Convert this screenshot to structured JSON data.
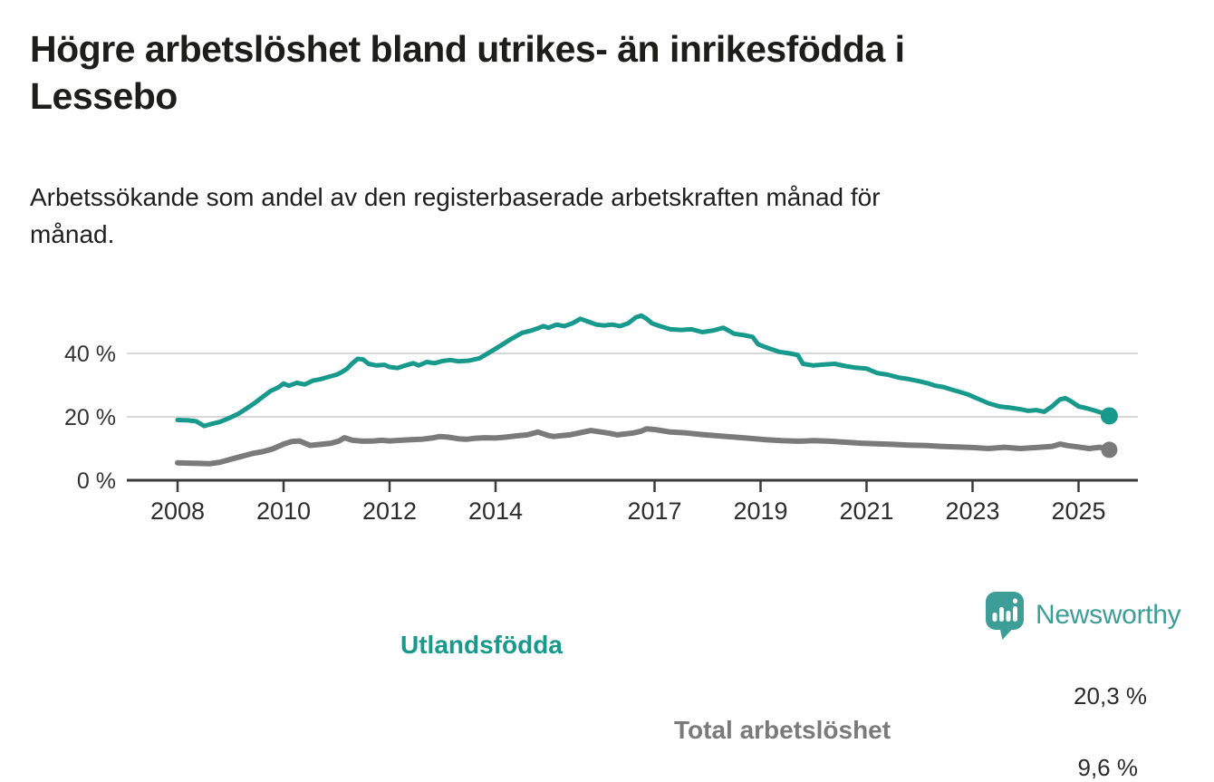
{
  "header": {
    "title_lines": [
      "Högre arbetslöshet bland utrikes- än inrikesfödda i",
      "Lessebo"
    ],
    "subtitle_lines": [
      "Arbetssökande som andel av den registerbaserade arbetskraften månad för",
      "månad."
    ]
  },
  "chart_data": {
    "type": "line",
    "title": "Högre arbetslöshet bland utrikes- än inrikesfödda i Lessebo",
    "subtitle": "Arbetssökande som andel av den registerbaserade arbetskraften månad för månad.",
    "xlabel": "",
    "ylabel": "",
    "y_unit": "%",
    "x_unit": "year (monthly observations)",
    "xlim": [
      2007.6,
      2026.1
    ],
    "ylim": [
      0,
      55
    ],
    "grid": "horizontal-only",
    "legend_position": "inline-labels-on-chart",
    "x_ticks": [
      {
        "year": 2008,
        "label": "2008"
      },
      {
        "year": 2010,
        "label": "2010"
      },
      {
        "year": 2012,
        "label": "2012"
      },
      {
        "year": 2014,
        "label": "2014"
      },
      {
        "year": 2017,
        "label": "2017"
      },
      {
        "year": 2019,
        "label": "2019"
      },
      {
        "year": 2021,
        "label": "2021"
      },
      {
        "year": 2023,
        "label": "2023"
      },
      {
        "year": 2025,
        "label": "2025"
      }
    ],
    "y_ticks": [
      {
        "value": 40,
        "label": "40 %"
      },
      {
        "value": 20,
        "label": "20 %"
      },
      {
        "value": 0,
        "label": "0 %"
      }
    ],
    "colors": {
      "grid": "#d8d8d8",
      "axis": "#3a3a3a",
      "tick_text": "#2d2d2d"
    },
    "series": [
      {
        "id": "utlandsfodda",
        "label": "Utlandsfödda",
        "color": "#17998c",
        "end_label": "20,3 %",
        "end_value": 20.3,
        "points": [
          [
            2008.0,
            19.0
          ],
          [
            2008.2,
            18.9
          ],
          [
            2008.35,
            18.6
          ],
          [
            2008.5,
            17.1
          ],
          [
            2008.65,
            17.8
          ],
          [
            2008.8,
            18.4
          ],
          [
            2009.0,
            19.8
          ],
          [
            2009.15,
            21.0
          ],
          [
            2009.3,
            22.6
          ],
          [
            2009.45,
            24.3
          ],
          [
            2009.6,
            26.2
          ],
          [
            2009.75,
            28.1
          ],
          [
            2009.9,
            29.3
          ],
          [
            2010.0,
            30.5
          ],
          [
            2010.1,
            29.8
          ],
          [
            2010.25,
            30.7
          ],
          [
            2010.4,
            30.2
          ],
          [
            2010.55,
            31.4
          ],
          [
            2010.7,
            31.9
          ],
          [
            2010.85,
            32.6
          ],
          [
            2011.0,
            33.3
          ],
          [
            2011.1,
            34.1
          ],
          [
            2011.2,
            35.2
          ],
          [
            2011.3,
            36.9
          ],
          [
            2011.4,
            38.3
          ],
          [
            2011.5,
            38.1
          ],
          [
            2011.6,
            36.7
          ],
          [
            2011.75,
            36.2
          ],
          [
            2011.9,
            36.4
          ],
          [
            2012.0,
            35.7
          ],
          [
            2012.15,
            35.4
          ],
          [
            2012.3,
            36.2
          ],
          [
            2012.45,
            36.9
          ],
          [
            2012.55,
            36.2
          ],
          [
            2012.7,
            37.3
          ],
          [
            2012.85,
            36.9
          ],
          [
            2013.0,
            37.6
          ],
          [
            2013.15,
            37.9
          ],
          [
            2013.3,
            37.5
          ],
          [
            2013.5,
            37.7
          ],
          [
            2013.7,
            38.5
          ],
          [
            2013.9,
            40.5
          ],
          [
            2014.1,
            42.5
          ],
          [
            2014.3,
            44.6
          ],
          [
            2014.5,
            46.5
          ],
          [
            2014.65,
            47.1
          ],
          [
            2014.8,
            47.9
          ],
          [
            2014.9,
            48.6
          ],
          [
            2015.0,
            48.1
          ],
          [
            2015.15,
            49.1
          ],
          [
            2015.3,
            48.6
          ],
          [
            2015.45,
            49.5
          ],
          [
            2015.6,
            50.9
          ],
          [
            2015.75,
            50.0
          ],
          [
            2015.9,
            49.1
          ],
          [
            2016.05,
            48.8
          ],
          [
            2016.2,
            49.1
          ],
          [
            2016.35,
            48.6
          ],
          [
            2016.5,
            49.5
          ],
          [
            2016.65,
            51.4
          ],
          [
            2016.75,
            51.9
          ],
          [
            2016.85,
            50.9
          ],
          [
            2016.95,
            49.5
          ],
          [
            2017.1,
            48.6
          ],
          [
            2017.3,
            47.6
          ],
          [
            2017.5,
            47.4
          ],
          [
            2017.7,
            47.6
          ],
          [
            2017.9,
            46.7
          ],
          [
            2018.1,
            47.2
          ],
          [
            2018.3,
            48.1
          ],
          [
            2018.5,
            46.2
          ],
          [
            2018.7,
            45.7
          ],
          [
            2018.85,
            45.2
          ],
          [
            2018.95,
            42.9
          ],
          [
            2019.1,
            41.9
          ],
          [
            2019.35,
            40.5
          ],
          [
            2019.55,
            40.0
          ],
          [
            2019.7,
            39.5
          ],
          [
            2019.8,
            36.7
          ],
          [
            2020.0,
            36.2
          ],
          [
            2020.2,
            36.5
          ],
          [
            2020.4,
            36.7
          ],
          [
            2020.6,
            36.0
          ],
          [
            2020.8,
            35.5
          ],
          [
            2021.0,
            35.2
          ],
          [
            2021.2,
            33.8
          ],
          [
            2021.4,
            33.3
          ],
          [
            2021.6,
            32.4
          ],
          [
            2021.8,
            31.9
          ],
          [
            2022.0,
            31.2
          ],
          [
            2022.15,
            30.6
          ],
          [
            2022.3,
            29.8
          ],
          [
            2022.45,
            29.4
          ],
          [
            2022.6,
            28.6
          ],
          [
            2022.75,
            27.9
          ],
          [
            2022.9,
            27.1
          ],
          [
            2023.1,
            25.7
          ],
          [
            2023.3,
            24.3
          ],
          [
            2023.5,
            23.3
          ],
          [
            2023.7,
            22.9
          ],
          [
            2023.9,
            22.4
          ],
          [
            2024.05,
            21.9
          ],
          [
            2024.2,
            22.1
          ],
          [
            2024.35,
            21.6
          ],
          [
            2024.5,
            23.3
          ],
          [
            2024.65,
            25.5
          ],
          [
            2024.75,
            25.9
          ],
          [
            2024.85,
            25.0
          ],
          [
            2025.0,
            23.3
          ],
          [
            2025.15,
            22.7
          ],
          [
            2025.3,
            22.0
          ],
          [
            2025.45,
            21.2
          ],
          [
            2025.58,
            20.3
          ]
        ]
      },
      {
        "id": "total",
        "label": "Total arbetslöshet",
        "color": "#7a7a7a",
        "end_label": "9,6 %",
        "end_value": 9.6,
        "points": [
          [
            2008.0,
            5.5
          ],
          [
            2008.2,
            5.4
          ],
          [
            2008.4,
            5.3
          ],
          [
            2008.6,
            5.2
          ],
          [
            2008.8,
            5.7
          ],
          [
            2009.0,
            6.6
          ],
          [
            2009.2,
            7.5
          ],
          [
            2009.4,
            8.4
          ],
          [
            2009.6,
            9.0
          ],
          [
            2009.8,
            9.9
          ],
          [
            2010.0,
            11.4
          ],
          [
            2010.15,
            12.2
          ],
          [
            2010.3,
            12.4
          ],
          [
            2010.5,
            11.0
          ],
          [
            2010.7,
            11.3
          ],
          [
            2010.9,
            11.7
          ],
          [
            2011.05,
            12.4
          ],
          [
            2011.15,
            13.4
          ],
          [
            2011.3,
            12.6
          ],
          [
            2011.5,
            12.3
          ],
          [
            2011.7,
            12.4
          ],
          [
            2011.85,
            12.6
          ],
          [
            2012.0,
            12.4
          ],
          [
            2012.2,
            12.6
          ],
          [
            2012.4,
            12.8
          ],
          [
            2012.6,
            12.9
          ],
          [
            2012.8,
            13.3
          ],
          [
            2012.95,
            13.8
          ],
          [
            2013.1,
            13.6
          ],
          [
            2013.3,
            13.1
          ],
          [
            2013.45,
            12.9
          ],
          [
            2013.6,
            13.2
          ],
          [
            2013.8,
            13.4
          ],
          [
            2014.0,
            13.3
          ],
          [
            2014.2,
            13.6
          ],
          [
            2014.4,
            14.0
          ],
          [
            2014.6,
            14.3
          ],
          [
            2014.8,
            15.2
          ],
          [
            2015.0,
            14.1
          ],
          [
            2015.1,
            13.8
          ],
          [
            2015.25,
            14.1
          ],
          [
            2015.4,
            14.3
          ],
          [
            2015.6,
            15.0
          ],
          [
            2015.8,
            15.7
          ],
          [
            2016.0,
            15.2
          ],
          [
            2016.15,
            14.8
          ],
          [
            2016.3,
            14.3
          ],
          [
            2016.45,
            14.6
          ],
          [
            2016.6,
            14.9
          ],
          [
            2016.75,
            15.5
          ],
          [
            2016.85,
            16.2
          ],
          [
            2017.0,
            16.0
          ],
          [
            2017.15,
            15.6
          ],
          [
            2017.3,
            15.2
          ],
          [
            2017.6,
            14.9
          ],
          [
            2017.9,
            14.4
          ],
          [
            2018.2,
            14.0
          ],
          [
            2018.5,
            13.6
          ],
          [
            2018.8,
            13.2
          ],
          [
            2019.1,
            12.8
          ],
          [
            2019.4,
            12.5
          ],
          [
            2019.7,
            12.3
          ],
          [
            2020.0,
            12.5
          ],
          [
            2020.3,
            12.3
          ],
          [
            2020.6,
            12.0
          ],
          [
            2020.9,
            11.7
          ],
          [
            2021.2,
            11.5
          ],
          [
            2021.5,
            11.3
          ],
          [
            2021.8,
            11.1
          ],
          [
            2022.0,
            11.0
          ],
          [
            2022.15,
            10.9
          ],
          [
            2022.4,
            10.7
          ],
          [
            2022.7,
            10.5
          ],
          [
            2023.0,
            10.3
          ],
          [
            2023.3,
            10.0
          ],
          [
            2023.6,
            10.4
          ],
          [
            2023.9,
            10.0
          ],
          [
            2024.2,
            10.3
          ],
          [
            2024.5,
            10.7
          ],
          [
            2024.65,
            11.4
          ],
          [
            2024.8,
            10.9
          ],
          [
            2025.0,
            10.5
          ],
          [
            2025.2,
            10.0
          ],
          [
            2025.4,
            10.4
          ],
          [
            2025.58,
            9.6
          ]
        ]
      }
    ]
  },
  "logo": {
    "text": "Newsworthy",
    "color": "#3c9e96",
    "icon": "speech-bubble-bar-chart"
  }
}
